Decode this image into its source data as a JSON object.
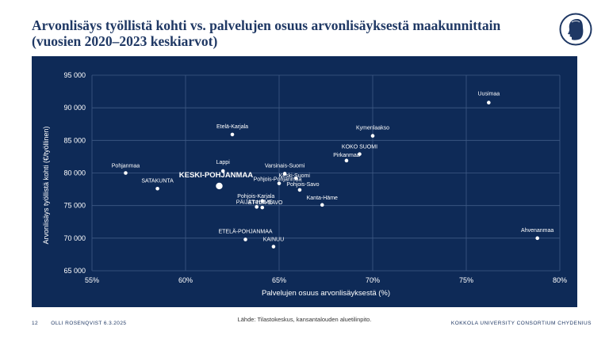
{
  "title": "Arvonlisäys työllistä kohti vs. palvelujen osuus arvonlisäyksestä maakunnittain (vuosien 2020–2023 keskiarvot)",
  "source": "Lähde: Tilastokeskus, kansantalouden aluetilinpito.",
  "footer": {
    "page_number": "12",
    "author_date": "OLLI ROSENQVIST 6.3.2025",
    "organization": "KOKKOLA UNIVERSITY CONSORTIUM CHYDENIUS"
  },
  "colors": {
    "panel_bg": "#0e2a57",
    "title": "#1f3864",
    "point": "#ffffff",
    "grid": "#3f5a85",
    "text": "#ffffff"
  },
  "chart_data": {
    "type": "scatter",
    "xlabel": "Palvelujen osuus arvonlisäyksestä (%)",
    "ylabel": "Arvonlisäys työllistä kohti (€/työllinen)",
    "xlim": [
      55,
      80
    ],
    "ylim": [
      65000,
      95000
    ],
    "x_ticks": [
      55,
      60,
      65,
      70,
      75,
      80
    ],
    "x_tick_labels": [
      "55%",
      "60%",
      "65%",
      "70%",
      "75%",
      "80%"
    ],
    "y_ticks": [
      65000,
      70000,
      75000,
      80000,
      85000,
      90000,
      95000
    ],
    "y_tick_labels": [
      "65 000",
      "70 000",
      "75 000",
      "80 000",
      "85 000",
      "90 000",
      "95 000"
    ],
    "grid": true,
    "highlight": "KESKI-POHJANMAA",
    "points": [
      {
        "label": "Uusimaa",
        "x": 76.2,
        "y": 90800
      },
      {
        "label": "Etelä-Karjala",
        "x": 62.5,
        "y": 85900
      },
      {
        "label": "Kymenlaakso",
        "x": 70.0,
        "y": 85700
      },
      {
        "label": "KOKO SUOMI",
        "x": 69.3,
        "y": 82900
      },
      {
        "label": "Pirkanmaa",
        "x": 68.6,
        "y": 81900
      },
      {
        "label": "Pohjanmaa",
        "x": 56.8,
        "y": 80000
      },
      {
        "label": "Lappi",
        "x": 62.0,
        "y": 80300
      },
      {
        "label": "Varsinais-Suomi",
        "x": 65.3,
        "y": 79900
      },
      {
        "label": "Keski-Suomi",
        "x": 65.9,
        "y": 79200
      },
      {
        "label": "Pohjois-Pohjanmaa",
        "x": 65.0,
        "y": 78400
      },
      {
        "label": "Pohjois-Savo",
        "x": 66.1,
        "y": 77400
      },
      {
        "label": "KESKI-POHJANMAA",
        "x": 61.8,
        "y": 78000
      },
      {
        "label": "SATAKUNTA",
        "x": 58.5,
        "y": 77600
      },
      {
        "label": "Pohjois-Karjala",
        "x": 64.1,
        "y": 75700
      },
      {
        "label": "PÄIJÄT-HÄME",
        "x": 63.8,
        "y": 74800
      },
      {
        "label": "ETELÄ-SAVO",
        "x": 64.1,
        "y": 74700
      },
      {
        "label": "Kanta-Häme",
        "x": 67.3,
        "y": 75100
      },
      {
        "label": "Ahvenanmaa",
        "x": 78.8,
        "y": 70000
      },
      {
        "label": "ETELÄ-POHJANMAA",
        "x": 63.2,
        "y": 69800
      },
      {
        "label": "KAINUU",
        "x": 64.7,
        "y": 68700
      }
    ]
  }
}
